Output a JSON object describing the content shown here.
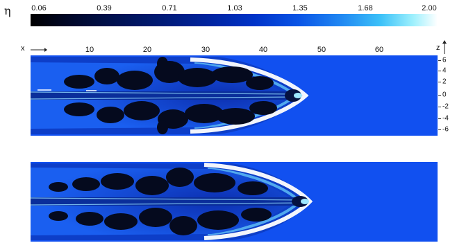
{
  "colorbar": {
    "symbol": "η",
    "ticks": [
      "0.06",
      "0.39",
      "0.71",
      "1.03",
      "1.35",
      "1.68",
      "2.00"
    ]
  },
  "axes": {
    "x_label": "x",
    "z_label": "z",
    "x_ticks": [
      "10",
      "20",
      "30",
      "40",
      "50",
      "60"
    ],
    "z_ticks": [
      "6",
      "4",
      "2",
      "0",
      "-2",
      "-4",
      "-6"
    ]
  },
  "panels": [
    "top",
    "bottom"
  ],
  "colors": {
    "ambient": "#1150f0",
    "shell": "#ffffff",
    "cocoon_inner": "#0b2fa8",
    "clumps": "#050a1e"
  }
}
